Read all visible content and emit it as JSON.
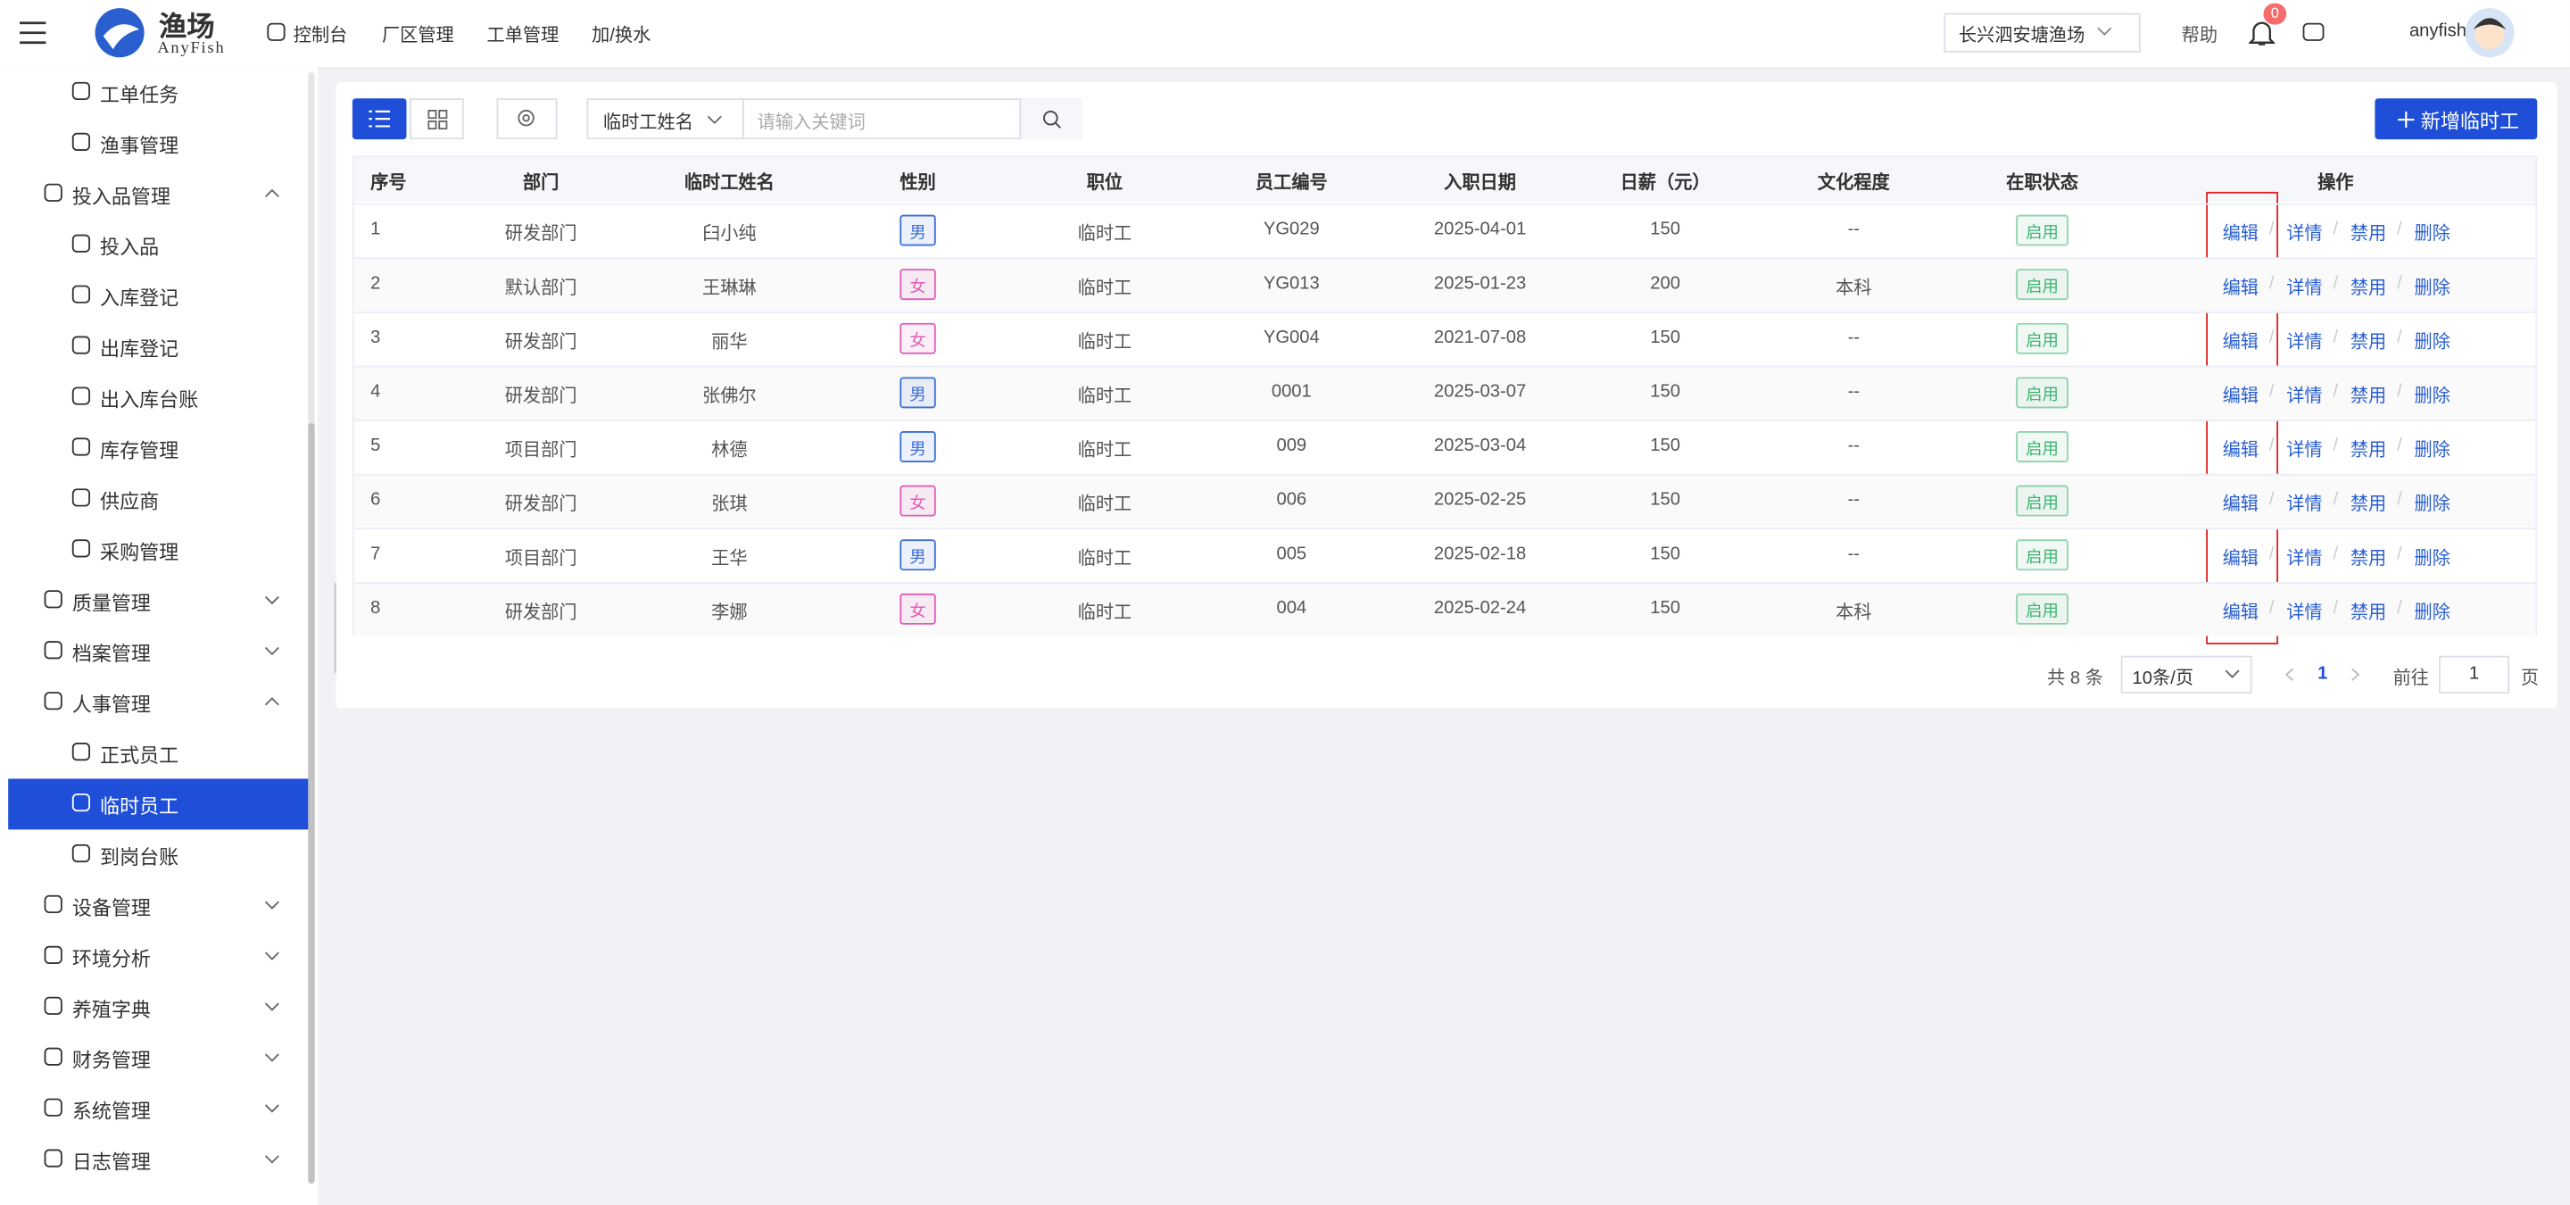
{
  "header": {
    "logo_title": "渔场",
    "logo_subtitle": "AnyFish",
    "nav": [
      "控制台",
      "厂区管理",
      "工单管理",
      "加/换水"
    ],
    "farm_select": "长兴泗安塘渔场",
    "help": "帮助",
    "notification_count": "0",
    "user": "anyfish"
  },
  "sidebar": [
    {
      "label": "工单任务",
      "level": 2
    },
    {
      "label": "渔事管理",
      "level": 2
    },
    {
      "label": "投入品管理",
      "level": 1,
      "expanded": true
    },
    {
      "label": "投入品",
      "level": 2
    },
    {
      "label": "入库登记",
      "level": 2
    },
    {
      "label": "出库登记",
      "level": 2
    },
    {
      "label": "出入库台账",
      "level": 2
    },
    {
      "label": "库存管理",
      "level": 2
    },
    {
      "label": "供应商",
      "level": 2
    },
    {
      "label": "采购管理",
      "level": 2
    },
    {
      "label": "质量管理",
      "level": 1,
      "expanded": false
    },
    {
      "label": "档案管理",
      "level": 1,
      "expanded": false
    },
    {
      "label": "人事管理",
      "level": 1,
      "expanded": true
    },
    {
      "label": "正式员工",
      "level": 2
    },
    {
      "label": "临时员工",
      "level": 2,
      "active": true
    },
    {
      "label": "到岗台账",
      "level": 2
    },
    {
      "label": "设备管理",
      "level": 1,
      "expanded": false
    },
    {
      "label": "环境分析",
      "level": 1,
      "expanded": false
    },
    {
      "label": "养殖字典",
      "level": 1,
      "expanded": false
    },
    {
      "label": "财务管理",
      "level": 1,
      "expanded": false
    },
    {
      "label": "系统管理",
      "level": 1,
      "expanded": false
    },
    {
      "label": "日志管理",
      "level": 1,
      "expanded": false
    }
  ],
  "toolbar": {
    "search_field": "临时工姓名",
    "search_placeholder": "请输入关键词",
    "add_button": "新增临时工"
  },
  "table": {
    "headers": [
      "序号",
      "部门",
      "临时工姓名",
      "性别",
      "职位",
      "员工编号",
      "入职日期",
      "日薪（元）",
      "文化程度",
      "在职状态",
      "操作"
    ],
    "rows": [
      [
        1,
        "研发部门",
        "臼小纯",
        "男",
        "临时工",
        "YG029",
        "2025-04-01",
        150,
        "--",
        "启用"
      ],
      [
        2,
        "默认部门",
        "王琳琳",
        "女",
        "临时工",
        "YG013",
        "2025-01-23",
        200,
        "本科",
        "启用"
      ],
      [
        3,
        "研发部门",
        "丽华",
        "女",
        "临时工",
        "YG004",
        "2021-07-08",
        150,
        "--",
        "启用"
      ],
      [
        4,
        "研发部门",
        "张佛尔",
        "男",
        "临时工",
        "0001",
        "2025-03-07",
        150,
        "--",
        "启用"
      ],
      [
        5,
        "项目部门",
        "林德",
        "男",
        "临时工",
        "009",
        "2025-03-04",
        150,
        "--",
        "启用"
      ],
      [
        6,
        "研发部门",
        "张琪",
        "女",
        "临时工",
        "006",
        "2025-02-25",
        150,
        "--",
        "启用"
      ],
      [
        7,
        "项目部门",
        "王华",
        "男",
        "临时工",
        "005",
        "2025-02-18",
        150,
        "--",
        "启用"
      ],
      [
        8,
        "研发部门",
        "李娜",
        "女",
        "临时工",
        "004",
        "2025-02-24",
        150,
        "本科",
        "启用"
      ]
    ],
    "actions": [
      "编辑",
      "详情",
      "禁用",
      "删除"
    ],
    "action_separator": "/",
    "gender_colors": {
      "男": "#3b6fd8",
      "女": "#e05cb8"
    },
    "status_color": "#3cb371"
  },
  "pagination": {
    "total": "共 8 条",
    "page_size": "10条/页",
    "current_page": "1",
    "goto": "前往",
    "goto_value": "1",
    "page_unit": "页"
  }
}
